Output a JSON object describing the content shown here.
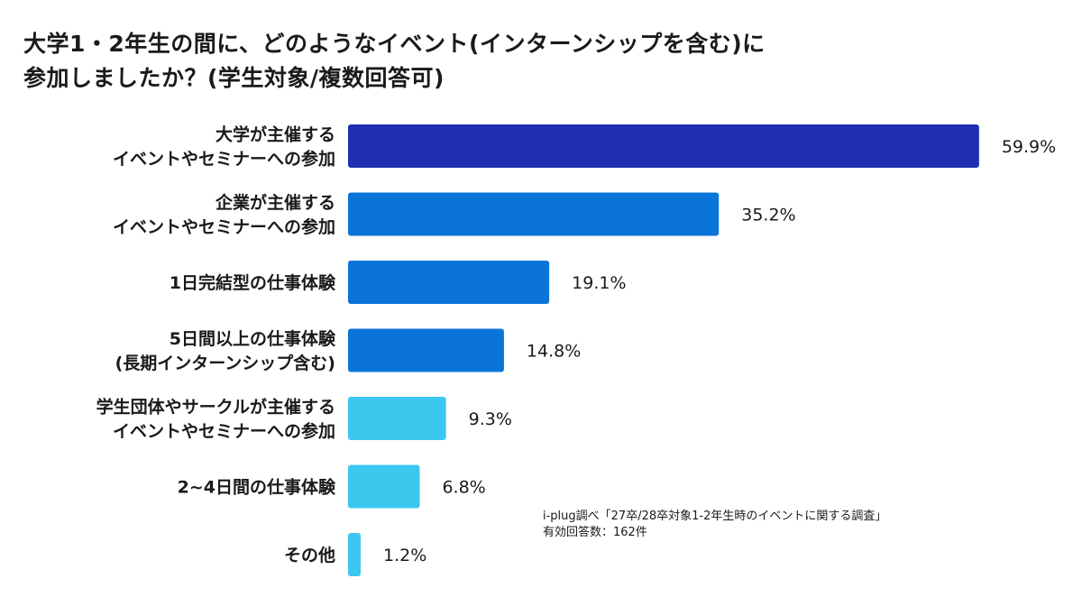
{
  "title": {
    "line1": "大学1・2年生の間に、どのようなイベント(インターンシップを含む)に",
    "line2": "参加しましたか？(学生対象/複数回答可)"
  },
  "source": {
    "line1": "i-plug調べ「27卒/28卒対象1-2年生時のイベントに関する調査」",
    "line2": "有効回答数：162件"
  },
  "colors": {
    "dark_blue": "#1e2fb1",
    "mid_blue": "#0b74d8",
    "light_blue": "#3cc7ee"
  },
  "chart_data": {
    "type": "bar",
    "orientation": "horizontal",
    "unit": "%",
    "categories": [
      [
        "大学が主催する",
        "イベントやセミナーへの参加"
      ],
      [
        "企業が主催する",
        "イベントやセミナーへの参加"
      ],
      [
        "1日完結型の仕事体験"
      ],
      [
        "5日間以上の仕事体験",
        "(長期インターンシップ含む)"
      ],
      [
        "学生団体やサークルが主催する",
        "イベントやセミナーへの参加"
      ],
      [
        "2~4日間の仕事体験"
      ],
      [
        "その他"
      ]
    ],
    "values": [
      59.9,
      35.2,
      19.1,
      14.8,
      9.3,
      6.8,
      1.2
    ],
    "value_labels": [
      "59.9%",
      "35.2%",
      "19.1%",
      "14.8%",
      "9.3%",
      "6.8%",
      "1.2%"
    ],
    "bar_colors": [
      "#1e2fb1",
      "#0b74d8",
      "#0b74d8",
      "#0b74d8",
      "#3cc7ee",
      "#3cc7ee",
      "#3cc7ee"
    ],
    "xlim": [
      0,
      60
    ]
  }
}
